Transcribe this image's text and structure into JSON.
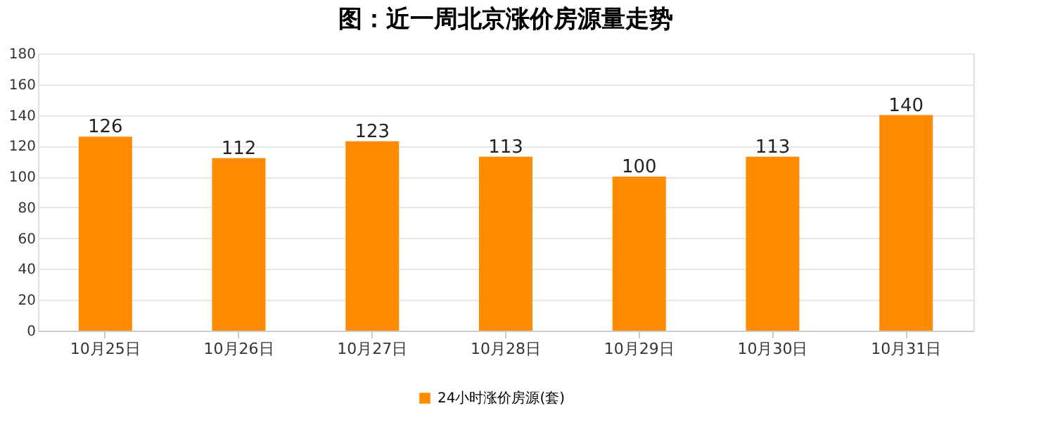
{
  "chart_data": {
    "type": "bar",
    "title": "图：近一周北京涨价房源量走势",
    "categories": [
      "10月25日",
      "10月26日",
      "10月27日",
      "10月28日",
      "10月29日",
      "10月30日",
      "10月31日"
    ],
    "series": [
      {
        "name": "24小时涨价房源(套)",
        "color": "#ff8c00",
        "values": [
          126,
          112,
          123,
          113,
          100,
          113,
          140
        ]
      }
    ],
    "ylim": [
      0,
      180
    ],
    "yticks": [
      0,
      20,
      40,
      60,
      80,
      100,
      120,
      140,
      160,
      180
    ],
    "grid": "y",
    "legend": "bottom",
    "data_labels": true
  }
}
